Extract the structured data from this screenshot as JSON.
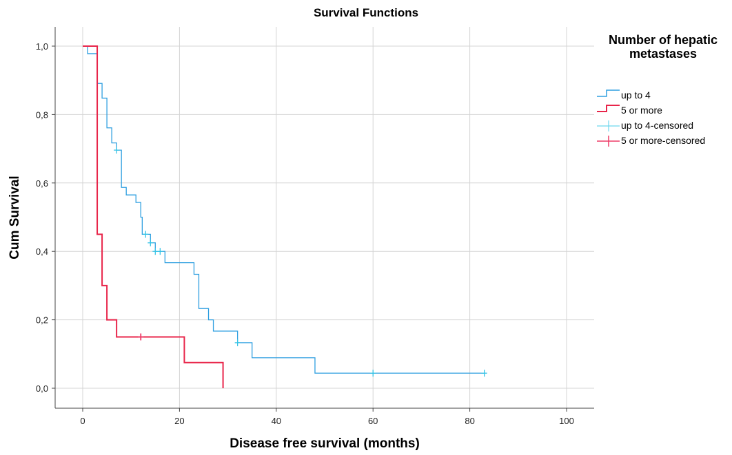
{
  "chart_data": {
    "type": "line",
    "subtype": "kaplan-meier-step",
    "title": "Survival Functions",
    "xlabel": "Disease free survival (months)",
    "ylabel": "Cum Survival",
    "xlim": [
      0,
      100
    ],
    "ylim": [
      0,
      1
    ],
    "x_ticks": [
      0,
      20,
      40,
      60,
      80,
      100
    ],
    "x_tick_labels": [
      "0",
      "20",
      "40",
      "60",
      "80",
      "100"
    ],
    "y_ticks": [
      0,
      0.2,
      0.4,
      0.6,
      0.8,
      1.0
    ],
    "y_tick_labels": [
      "0,0",
      "0,2",
      "0,4",
      "0,6",
      "0,8",
      "1,0"
    ],
    "grid": true,
    "legend_title": "Number of hepatic metastases",
    "legend_position": "right",
    "series": [
      {
        "name": "up to 4",
        "color": "#2e9fe0",
        "censored_color": "#34c3e6",
        "steps": [
          [
            0,
            1.0
          ],
          [
            1,
            0.978
          ],
          [
            3,
            0.891
          ],
          [
            4,
            0.848
          ],
          [
            5,
            0.761
          ],
          [
            6,
            0.717
          ],
          [
            7,
            0.696
          ],
          [
            8,
            0.587
          ],
          [
            9,
            0.565
          ],
          [
            11,
            0.543
          ],
          [
            12,
            0.5
          ],
          [
            12.3,
            0.45
          ],
          [
            14,
            0.425
          ],
          [
            15,
            0.4
          ],
          [
            17,
            0.367
          ],
          [
            23,
            0.333
          ],
          [
            24,
            0.233
          ],
          [
            26,
            0.2
          ],
          [
            27,
            0.167
          ],
          [
            32,
            0.133
          ],
          [
            35,
            0.089
          ],
          [
            48,
            0.044
          ],
          [
            83,
            0.044
          ]
        ],
        "censored": [
          [
            7,
            0.696
          ],
          [
            13,
            0.45
          ],
          [
            14,
            0.425
          ],
          [
            15,
            0.4
          ],
          [
            16,
            0.4
          ],
          [
            32,
            0.133
          ],
          [
            60,
            0.044
          ],
          [
            83,
            0.044
          ]
        ]
      },
      {
        "name": "5 or more",
        "color": "#e8254a",
        "censored_color": "#ee3a66",
        "steps": [
          [
            0,
            1.0
          ],
          [
            3,
            0.45
          ],
          [
            4,
            0.3
          ],
          [
            5,
            0.2
          ],
          [
            7,
            0.15
          ],
          [
            21,
            0.075
          ],
          [
            29,
            0
          ]
        ],
        "censored": [
          [
            12,
            0.15
          ]
        ]
      }
    ],
    "legend_entries": [
      "up to 4",
      "5 or more",
      "up to 4-censored",
      "5 or more-censored"
    ]
  }
}
